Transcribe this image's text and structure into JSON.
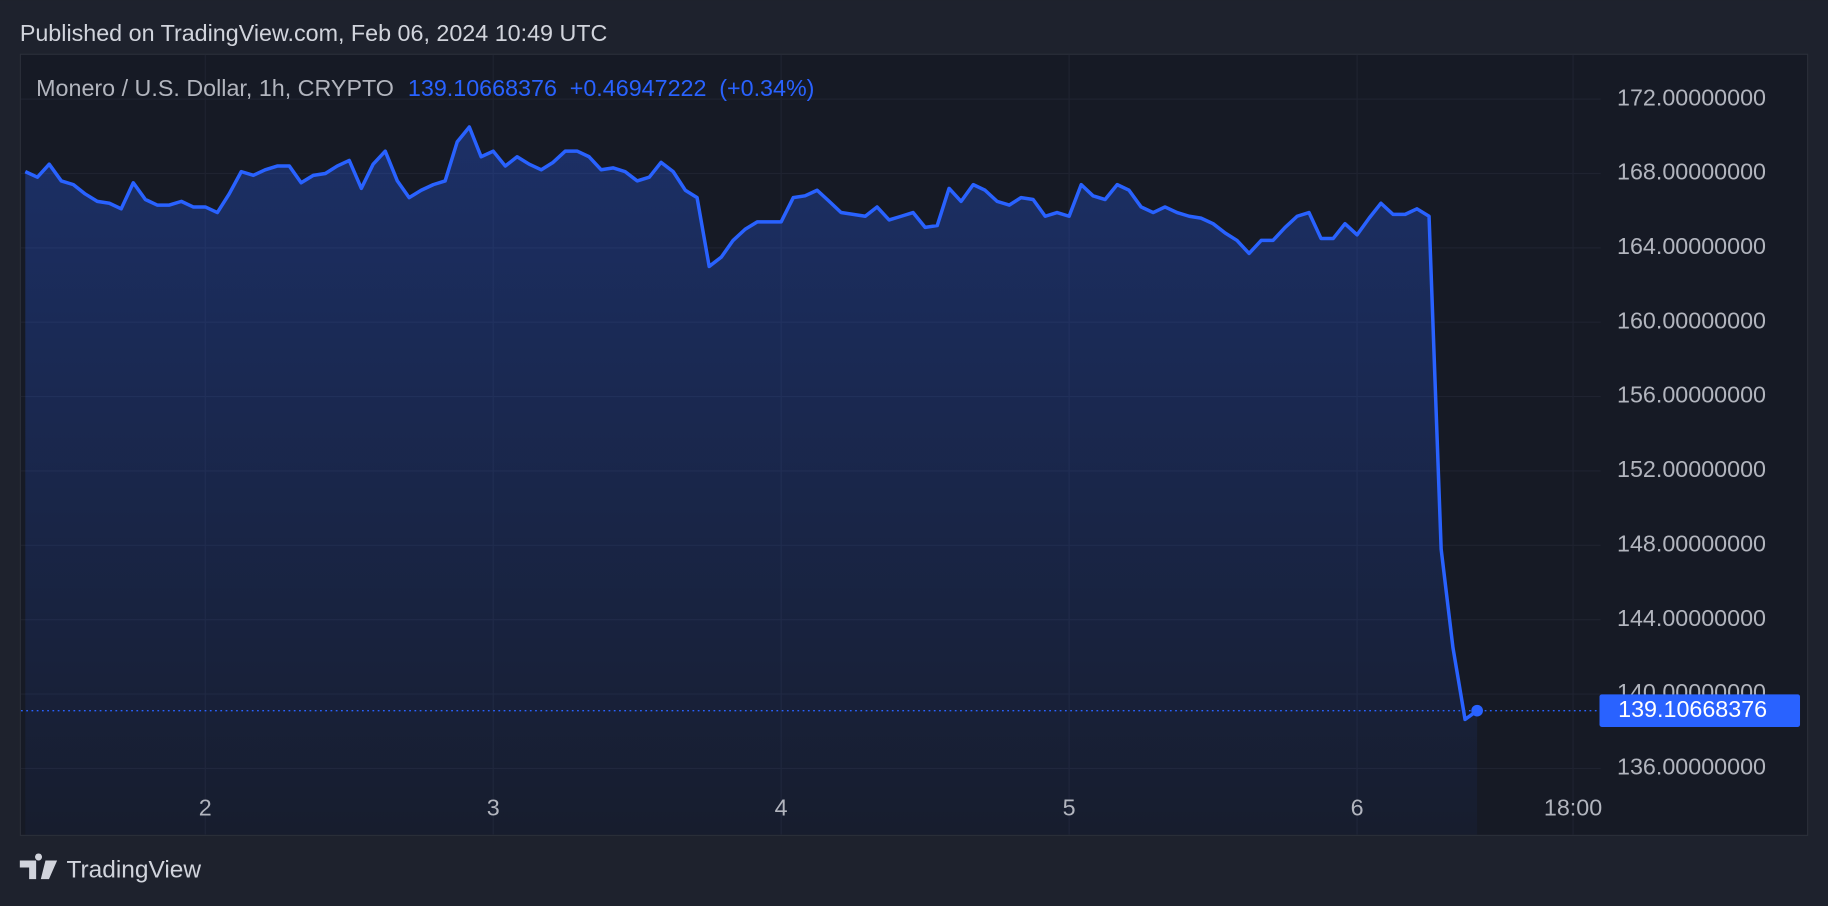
{
  "header": {
    "published": "Published on TradingView.com, Feb 06, 2024 10:49 UTC"
  },
  "chart_data": {
    "type": "area",
    "title": "Monero / U.S. Dollar, 1h, CRYPTO",
    "change_label": "+0.46947222",
    "change_percent_label": "(+0.34%)",
    "color": "#2962ff",
    "grid": true,
    "x": [
      1.375,
      1.417,
      1.458,
      1.5,
      1.542,
      1.583,
      1.625,
      1.667,
      1.708,
      1.75,
      1.792,
      1.833,
      1.875,
      1.917,
      1.958,
      2,
      2.042,
      2.083,
      2.125,
      2.167,
      2.208,
      2.25,
      2.292,
      2.333,
      2.375,
      2.417,
      2.458,
      2.5,
      2.542,
      2.583,
      2.625,
      2.667,
      2.708,
      2.75,
      2.792,
      2.833,
      2.875,
      2.917,
      2.958,
      3,
      3.042,
      3.083,
      3.125,
      3.167,
      3.208,
      3.25,
      3.292,
      3.333,
      3.375,
      3.417,
      3.458,
      3.5,
      3.542,
      3.583,
      3.625,
      3.667,
      3.708,
      3.75,
      3.792,
      3.833,
      3.875,
      3.917,
      3.958,
      4,
      4.042,
      4.083,
      4.125,
      4.167,
      4.208,
      4.25,
      4.292,
      4.333,
      4.375,
      4.417,
      4.458,
      4.5,
      4.542,
      4.583,
      4.625,
      4.667,
      4.708,
      4.75,
      4.792,
      4.833,
      4.875,
      4.917,
      4.958,
      5,
      5.042,
      5.083,
      5.125,
      5.167,
      5.208,
      5.25,
      5.292,
      5.333,
      5.375,
      5.417,
      5.458,
      5.5,
      5.542,
      5.583,
      5.625,
      5.667,
      5.708,
      5.75,
      5.792,
      5.833,
      5.875,
      5.917,
      5.958,
      6,
      6.042,
      6.083,
      6.125,
      6.167,
      6.208,
      6.25,
      6.292,
      6.333,
      6.375,
      6.417
    ],
    "values": [
      168.1,
      167.8,
      168.5,
      167.6,
      167.4,
      166.9,
      166.5,
      166.4,
      166.1,
      167.5,
      166.6,
      166.3,
      166.3,
      166.5,
      166.2,
      166.2,
      165.9,
      166.9,
      168.1,
      167.9,
      168.2,
      168.4,
      168.4,
      167.5,
      167.9,
      168.0,
      168.4,
      168.7,
      167.2,
      168.5,
      169.2,
      167.6,
      166.7,
      167.1,
      167.4,
      167.6,
      169.7,
      170.5,
      168.9,
      169.2,
      168.4,
      168.9,
      168.5,
      168.2,
      168.6,
      169.2,
      169.2,
      168.9,
      168.2,
      168.3,
      168.1,
      167.6,
      167.8,
      168.6,
      168.1,
      167.1,
      166.7,
      163.0,
      163.5,
      164.4,
      165.0,
      165.4,
      165.4,
      165.4,
      166.7,
      166.8,
      167.1,
      166.5,
      165.9,
      165.8,
      165.7,
      166.2,
      165.5,
      165.7,
      165.9,
      165.1,
      165.2,
      167.2,
      166.5,
      167.4,
      167.1,
      166.5,
      166.3,
      166.7,
      166.6,
      165.7,
      165.9,
      165.7,
      167.4,
      166.8,
      166.6,
      167.4,
      167.1,
      166.2,
      165.9,
      166.2,
      165.9,
      165.7,
      165.6,
      165.3,
      164.8,
      164.4,
      163.7,
      164.4,
      164.4,
      165.1,
      165.7,
      165.9,
      164.5,
      164.5,
      165.3,
      164.7,
      165.6,
      166.4,
      165.8,
      165.8,
      166.1,
      165.7,
      147.8,
      142.5,
      138.63721154,
      139.10668376
    ],
    "xlim": [
      1.36,
      6.846
    ],
    "xticks": [
      2,
      3,
      4,
      5,
      6,
      {
        "value": 6.75,
        "label": "18:00"
      }
    ],
    "ylim": [
      132.43,
      174.38
    ],
    "yticks": [
      {
        "value": 136,
        "label": "136.00000000"
      },
      {
        "value": 140,
        "label": "140.00000000"
      },
      {
        "value": 144,
        "label": "144.00000000"
      },
      {
        "value": 148,
        "label": "148.00000000"
      },
      {
        "value": 152,
        "label": "152.00000000"
      },
      {
        "value": 156,
        "label": "156.00000000"
      },
      {
        "value": 160,
        "label": "160.00000000"
      },
      {
        "value": 164,
        "label": "164.00000000"
      },
      {
        "value": 168,
        "label": "168.00000000"
      },
      {
        "value": 172,
        "label": "172.00000000"
      }
    ]
  },
  "footer": {
    "brand": "TradingView"
  }
}
